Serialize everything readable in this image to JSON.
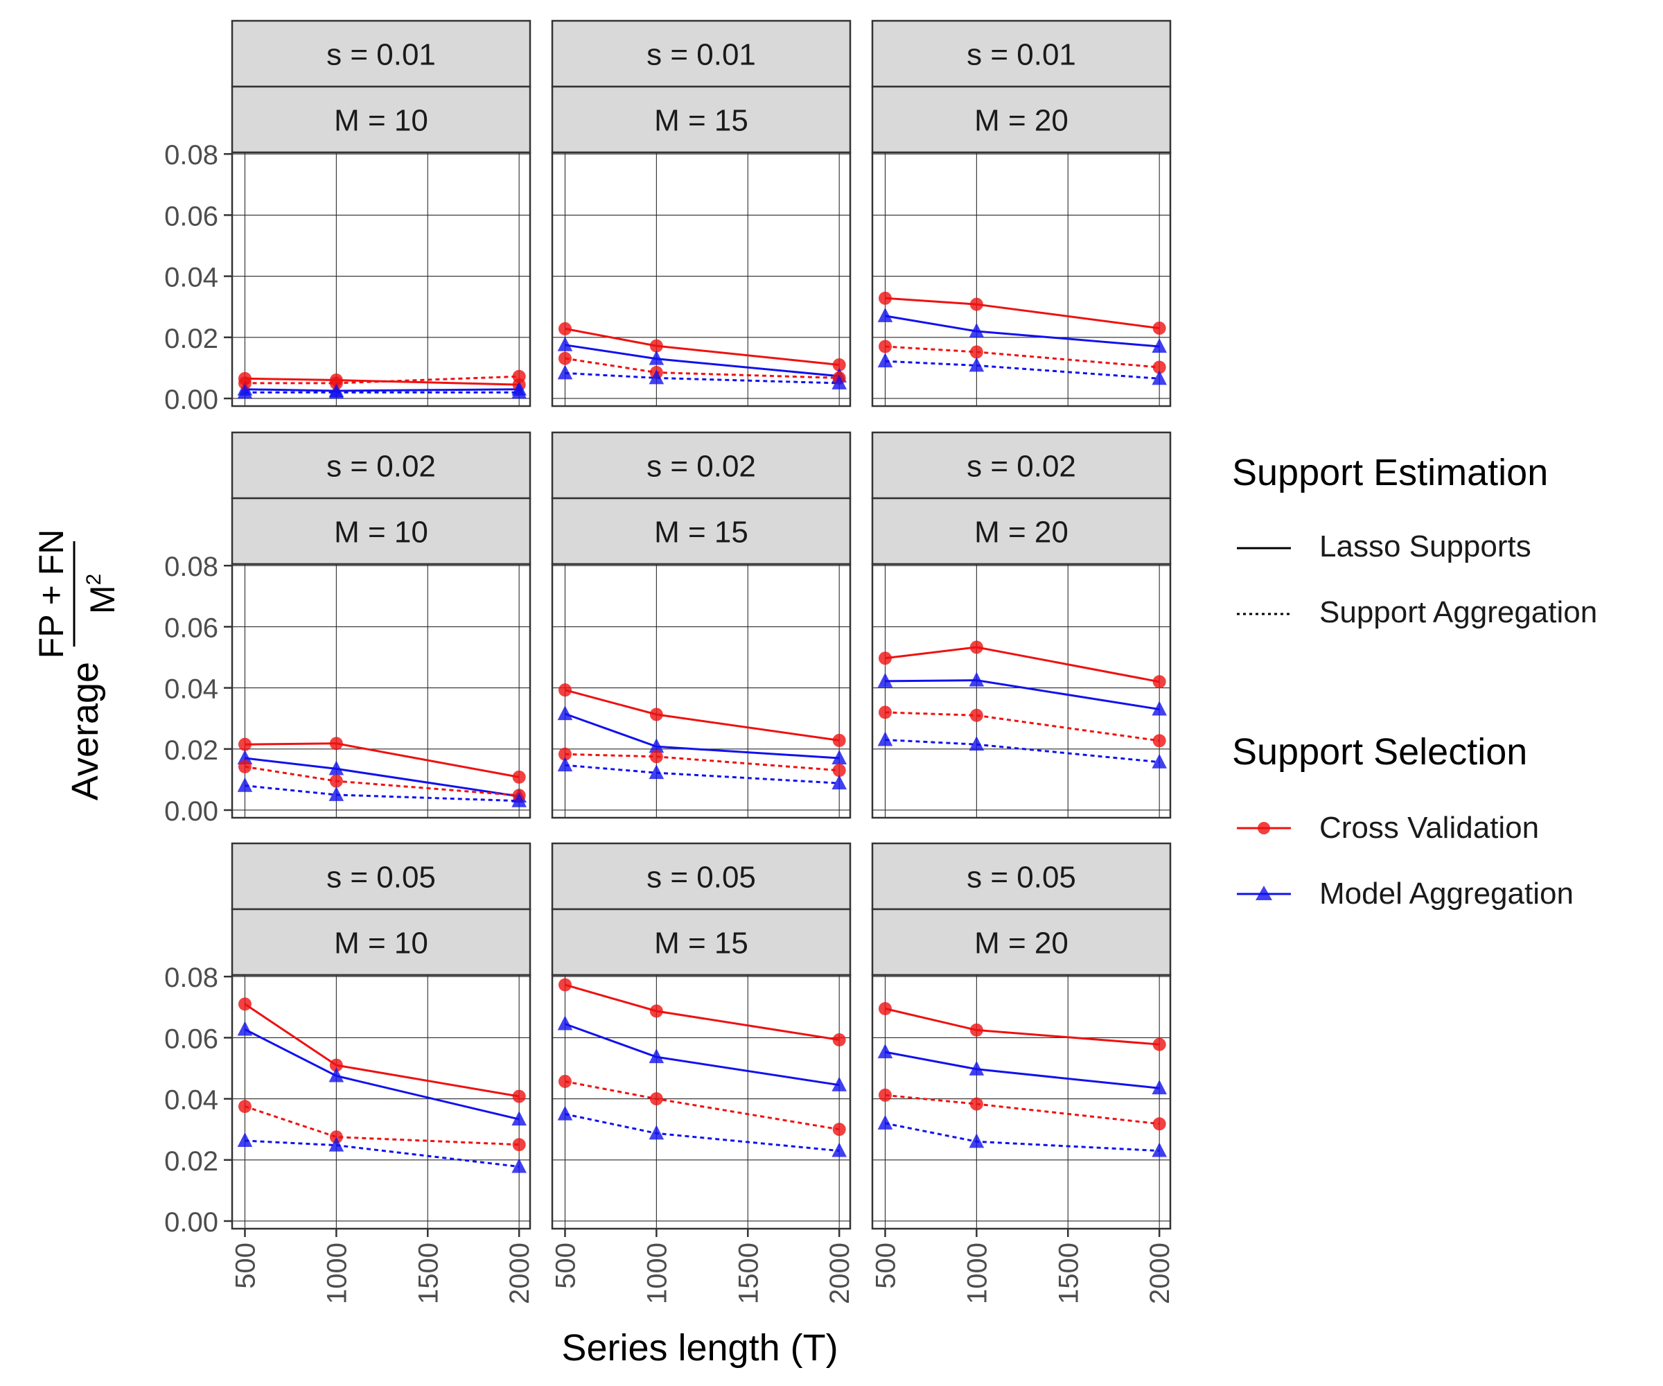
{
  "chart_data": {
    "type": "line",
    "xlabel": "Series length (T)",
    "ylabel": {
      "prefix": "Average",
      "numerator": "FP + FN",
      "denominator_base": "M",
      "denominator_exponent": "2"
    },
    "x_ticks": [
      500,
      1000,
      1500,
      2000
    ],
    "x_tick_labels": [
      "500",
      "1000",
      "1500",
      "2000"
    ],
    "x_range": [
      430,
      2060
    ],
    "y_ticks": [
      0,
      0.02,
      0.04,
      0.06,
      0.08
    ],
    "y_tick_labels": [
      "0.00",
      "0.02",
      "0.04",
      "0.06",
      "0.08"
    ],
    "y_range": [
      -0.0025,
      0.0805
    ],
    "grid": true,
    "legend": {
      "placement": "right",
      "estimation": {
        "title": "Support Estimation",
        "items": [
          {
            "label": "Lasso Supports",
            "linestyle": "solid"
          },
          {
            "label": "Support Aggregation",
            "linestyle": "dotted"
          }
        ]
      },
      "selection": {
        "title": "Support Selection",
        "items": [
          {
            "label": "Cross Validation",
            "color": "#ee1111",
            "marker": "circle"
          },
          {
            "label": "Model Aggregation",
            "color": "#1111ee",
            "marker": "triangle"
          }
        ]
      }
    },
    "x": [
      500,
      1000,
      2000
    ],
    "panels": [
      {
        "s_label": "s = 0.01",
        "m_label": "M = 10",
        "series": [
          {
            "name": "Cross Validation / Lasso Supports",
            "color": "#ee1111",
            "marker": "circle",
            "linestyle": "solid",
            "values": [
              0.0065,
              0.006,
              0.0045
            ]
          },
          {
            "name": "Model Aggregation / Lasso Supports",
            "color": "#1111ee",
            "marker": "triangle",
            "linestyle": "solid",
            "values": [
              0.003,
              0.0025,
              0.003
            ]
          },
          {
            "name": "Cross Validation / Support Aggregation",
            "color": "#ee1111",
            "marker": "circle",
            "linestyle": "dotted",
            "values": [
              0.005,
              0.005,
              0.0072
            ]
          },
          {
            "name": "Model Aggregation / Support Aggregation",
            "color": "#1111ee",
            "marker": "triangle",
            "linestyle": "dotted",
            "values": [
              0.002,
              0.002,
              0.002
            ]
          }
        ]
      },
      {
        "s_label": "s = 0.01",
        "m_label": "M = 15",
        "series": [
          {
            "name": "Cross Validation / Lasso Supports",
            "color": "#ee1111",
            "marker": "circle",
            "linestyle": "solid",
            "values": [
              0.0228,
              0.0172,
              0.011
            ]
          },
          {
            "name": "Model Aggregation / Lasso Supports",
            "color": "#1111ee",
            "marker": "triangle",
            "linestyle": "solid",
            "values": [
              0.0175,
              0.013,
              0.0073
            ]
          },
          {
            "name": "Cross Validation / Support Aggregation",
            "color": "#ee1111",
            "marker": "circle",
            "linestyle": "dotted",
            "values": [
              0.0131,
              0.0085,
              0.0067
            ]
          },
          {
            "name": "Model Aggregation / Support Aggregation",
            "color": "#1111ee",
            "marker": "triangle",
            "linestyle": "dotted",
            "values": [
              0.0083,
              0.0067,
              0.005
            ]
          }
        ]
      },
      {
        "s_label": "s = 0.01",
        "m_label": "M = 20",
        "series": [
          {
            "name": "Cross Validation / Lasso Supports",
            "color": "#ee1111",
            "marker": "circle",
            "linestyle": "solid",
            "values": [
              0.0328,
              0.0308,
              0.023
            ]
          },
          {
            "name": "Model Aggregation / Lasso Supports",
            "color": "#1111ee",
            "marker": "triangle",
            "linestyle": "solid",
            "values": [
              0.027,
              0.022,
              0.017
            ]
          },
          {
            "name": "Cross Validation / Support Aggregation",
            "color": "#ee1111",
            "marker": "circle",
            "linestyle": "dotted",
            "values": [
              0.017,
              0.0152,
              0.0102
            ]
          },
          {
            "name": "Model Aggregation / Support Aggregation",
            "color": "#1111ee",
            "marker": "triangle",
            "linestyle": "dotted",
            "values": [
              0.0122,
              0.0108,
              0.0065
            ]
          }
        ]
      },
      {
        "s_label": "s = 0.02",
        "m_label": "M = 10",
        "series": [
          {
            "name": "Cross Validation / Lasso Supports",
            "color": "#ee1111",
            "marker": "circle",
            "linestyle": "solid",
            "values": [
              0.0215,
              0.0218,
              0.0108
            ]
          },
          {
            "name": "Model Aggregation / Lasso Supports",
            "color": "#1111ee",
            "marker": "triangle",
            "linestyle": "solid",
            "values": [
              0.017,
              0.0135,
              0.0045
            ]
          },
          {
            "name": "Cross Validation / Support Aggregation",
            "color": "#ee1111",
            "marker": "circle",
            "linestyle": "dotted",
            "values": [
              0.0142,
              0.0095,
              0.0048
            ]
          },
          {
            "name": "Model Aggregation / Support Aggregation",
            "color": "#1111ee",
            "marker": "triangle",
            "linestyle": "dotted",
            "values": [
              0.008,
              0.005,
              0.003
            ]
          }
        ]
      },
      {
        "s_label": "s = 0.02",
        "m_label": "M = 15",
        "series": [
          {
            "name": "Cross Validation / Lasso Supports",
            "color": "#ee1111",
            "marker": "circle",
            "linestyle": "solid",
            "values": [
              0.0393,
              0.0313,
              0.0228
            ]
          },
          {
            "name": "Model Aggregation / Lasso Supports",
            "color": "#1111ee",
            "marker": "triangle",
            "linestyle": "solid",
            "values": [
              0.0315,
              0.0208,
              0.017
            ]
          },
          {
            "name": "Cross Validation / Support Aggregation",
            "color": "#ee1111",
            "marker": "circle",
            "linestyle": "dotted",
            "values": [
              0.0183,
              0.0175,
              0.013
            ]
          },
          {
            "name": "Model Aggregation / Support Aggregation",
            "color": "#1111ee",
            "marker": "triangle",
            "linestyle": "dotted",
            "values": [
              0.0147,
              0.0122,
              0.0088
            ]
          }
        ]
      },
      {
        "s_label": "s = 0.02",
        "m_label": "M = 20",
        "series": [
          {
            "name": "Cross Validation / Lasso Supports",
            "color": "#ee1111",
            "marker": "circle",
            "linestyle": "solid",
            "values": [
              0.0497,
              0.0533,
              0.042
            ]
          },
          {
            "name": "Model Aggregation / Lasso Supports",
            "color": "#1111ee",
            "marker": "triangle",
            "linestyle": "solid",
            "values": [
              0.0422,
              0.0425,
              0.033
            ]
          },
          {
            "name": "Cross Validation / Support Aggregation",
            "color": "#ee1111",
            "marker": "circle",
            "linestyle": "dotted",
            "values": [
              0.032,
              0.031,
              0.0227
            ]
          },
          {
            "name": "Model Aggregation / Support Aggregation",
            "color": "#1111ee",
            "marker": "triangle",
            "linestyle": "dotted",
            "values": [
              0.023,
              0.0215,
              0.0157
            ]
          }
        ]
      },
      {
        "s_label": "s = 0.05",
        "m_label": "M = 10",
        "series": [
          {
            "name": "Cross Validation / Lasso Supports",
            "color": "#ee1111",
            "marker": "circle",
            "linestyle": "solid",
            "values": [
              0.071,
              0.051,
              0.0408
            ]
          },
          {
            "name": "Model Aggregation / Lasso Supports",
            "color": "#1111ee",
            "marker": "triangle",
            "linestyle": "solid",
            "values": [
              0.0627,
              0.0475,
              0.0333
            ]
          },
          {
            "name": "Cross Validation / Support Aggregation",
            "color": "#ee1111",
            "marker": "circle",
            "linestyle": "dotted",
            "values": [
              0.0375,
              0.0275,
              0.025
            ]
          },
          {
            "name": "Model Aggregation / Support Aggregation",
            "color": "#1111ee",
            "marker": "triangle",
            "linestyle": "dotted",
            "values": [
              0.0263,
              0.0248,
              0.0178
            ]
          }
        ]
      },
      {
        "s_label": "s = 0.05",
        "m_label": "M = 15",
        "series": [
          {
            "name": "Cross Validation / Lasso Supports",
            "color": "#ee1111",
            "marker": "circle",
            "linestyle": "solid",
            "values": [
              0.0773,
              0.0687,
              0.0593
            ]
          },
          {
            "name": "Model Aggregation / Lasso Supports",
            "color": "#1111ee",
            "marker": "triangle",
            "linestyle": "solid",
            "values": [
              0.0645,
              0.0537,
              0.0445
            ]
          },
          {
            "name": "Cross Validation / Support Aggregation",
            "color": "#ee1111",
            "marker": "circle",
            "linestyle": "dotted",
            "values": [
              0.0457,
              0.04,
              0.03
            ]
          },
          {
            "name": "Model Aggregation / Support Aggregation",
            "color": "#1111ee",
            "marker": "triangle",
            "linestyle": "dotted",
            "values": [
              0.035,
              0.0287,
              0.023
            ]
          }
        ]
      },
      {
        "s_label": "s = 0.05",
        "m_label": "M = 20",
        "series": [
          {
            "name": "Cross Validation / Lasso Supports",
            "color": "#ee1111",
            "marker": "circle",
            "linestyle": "solid",
            "values": [
              0.0695,
              0.0625,
              0.0578
            ]
          },
          {
            "name": "Model Aggregation / Lasso Supports",
            "color": "#1111ee",
            "marker": "triangle",
            "linestyle": "solid",
            "values": [
              0.0553,
              0.0497,
              0.0435
            ]
          },
          {
            "name": "Cross Validation / Support Aggregation",
            "color": "#ee1111",
            "marker": "circle",
            "linestyle": "dotted",
            "values": [
              0.0412,
              0.0383,
              0.0318
            ]
          },
          {
            "name": "Model Aggregation / Support Aggregation",
            "color": "#1111ee",
            "marker": "triangle",
            "linestyle": "dotted",
            "values": [
              0.032,
              0.026,
              0.023
            ]
          }
        ]
      }
    ]
  }
}
